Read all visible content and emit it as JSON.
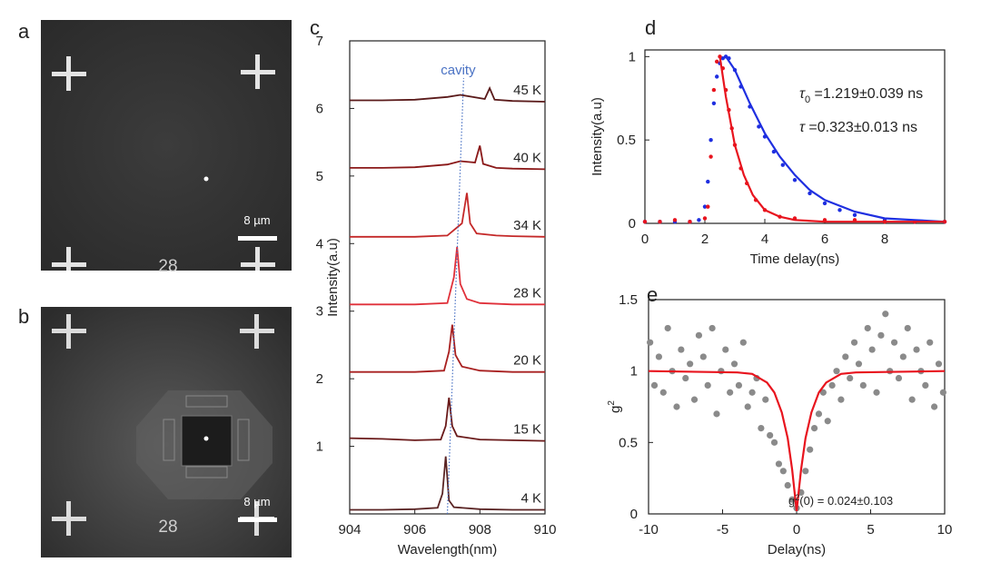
{
  "images": [
    {
      "panel_label": "a",
      "scale_bar": "8 µm",
      "marker_text": "28"
    },
    {
      "panel_label": "b",
      "scale_bar": "8 µm",
      "marker_text": "28"
    }
  ],
  "chart_data": [
    {
      "type": "line",
      "panel_label": "c",
      "xlabel": "Wavelength(nm)",
      "ylabel": "Intensity(a.u)",
      "xlim": [
        904,
        910
      ],
      "xticks": [
        904,
        906,
        908,
        910
      ],
      "ylim": [
        0,
        7
      ],
      "yticks": [
        1,
        2,
        3,
        4,
        5,
        6,
        7
      ],
      "annotation": {
        "text": "cavity",
        "color": "#4a72c4",
        "x": [
          907.0,
          907.5
        ],
        "y": [
          0,
          6.45
        ]
      },
      "series": [
        {
          "name": "4 K",
          "color": "#5a2424",
          "x": [
            904,
            905,
            906,
            906.7,
            906.85,
            906.95,
            907.05,
            907.2,
            908,
            909,
            910
          ],
          "values": [
            0.06,
            0.06,
            0.07,
            0.09,
            0.3,
            0.85,
            0.2,
            0.1,
            0.07,
            0.06,
            0.06
          ]
        },
        {
          "name": "15 K",
          "color": "#6a1a1a",
          "x": [
            904,
            905,
            906,
            906.8,
            906.95,
            907.05,
            907.15,
            907.3,
            908,
            909,
            910
          ],
          "values": [
            1.12,
            1.11,
            1.09,
            1.1,
            1.3,
            1.72,
            1.3,
            1.15,
            1.1,
            1.09,
            1.08
          ]
        },
        {
          "name": "20 K",
          "color": "#a82020",
          "x": [
            904,
            905,
            906,
            906.9,
            907.05,
            907.15,
            907.25,
            907.45,
            908,
            909,
            910
          ],
          "values": [
            2.1,
            2.1,
            2.1,
            2.12,
            2.4,
            2.8,
            2.35,
            2.18,
            2.12,
            2.1,
            2.1
          ]
        },
        {
          "name": "28 K",
          "color": "#e0303a",
          "x": [
            904,
            905,
            906,
            907,
            907.2,
            907.3,
            907.4,
            907.6,
            908,
            909,
            910
          ],
          "values": [
            3.1,
            3.1,
            3.1,
            3.12,
            3.5,
            3.95,
            3.4,
            3.18,
            3.12,
            3.1,
            3.1
          ]
        },
        {
          "name": "34 K",
          "color": "#c42828",
          "x": [
            904,
            905,
            906,
            907,
            907.45,
            907.6,
            907.7,
            907.9,
            908.5,
            909,
            910
          ],
          "values": [
            4.1,
            4.1,
            4.1,
            4.12,
            4.3,
            4.75,
            4.3,
            4.15,
            4.12,
            4.11,
            4.1
          ]
        },
        {
          "name": "40 K",
          "color": "#8a1818",
          "x": [
            904,
            905,
            906,
            907,
            907.4,
            907.85,
            908.0,
            908.1,
            908.5,
            909,
            910
          ],
          "values": [
            5.12,
            5.12,
            5.13,
            5.17,
            5.22,
            5.2,
            5.45,
            5.18,
            5.12,
            5.11,
            5.1
          ]
        },
        {
          "name": "45 K",
          "color": "#5a1a1a",
          "x": [
            904,
            905,
            906,
            907,
            907.4,
            908.15,
            908.3,
            908.45,
            909,
            910
          ],
          "values": [
            6.12,
            6.12,
            6.13,
            6.17,
            6.2,
            6.14,
            6.3,
            6.13,
            6.11,
            6.1
          ]
        }
      ]
    },
    {
      "type": "scatter",
      "panel_label": "d",
      "xlabel": "Time delay(ns)",
      "ylabel": "Intensity(a.u)",
      "xlim": [
        0,
        10
      ],
      "xticks": [
        0,
        2,
        4,
        6,
        8
      ],
      "ylim": [
        0,
        1.04
      ],
      "yticks": [
        0,
        0.5,
        1
      ],
      "annotations": [
        {
          "symbol": "τ",
          "sub": "0",
          "text": " =1.219±0.039 ns"
        },
        {
          "symbol": "τ",
          "sub": "",
          "text": " =0.323±0.013 ns"
        }
      ],
      "series": [
        {
          "color": "#1f2fe0",
          "style": "markers",
          "x": [
            0,
            0.5,
            1,
            1.5,
            1.8,
            2,
            2.1,
            2.2,
            2.3,
            2.4,
            2.5,
            2.6,
            2.7,
            2.8,
            3,
            3.2,
            3.5,
            3.8,
            4,
            4.3,
            4.6,
            5,
            5.5,
            6,
            6.5,
            7,
            8,
            9,
            10
          ],
          "values": [
            0.01,
            0.01,
            0.01,
            0.01,
            0.02,
            0.1,
            0.25,
            0.5,
            0.72,
            0.88,
            0.96,
            0.99,
            1.0,
            0.99,
            0.92,
            0.82,
            0.7,
            0.58,
            0.52,
            0.43,
            0.35,
            0.26,
            0.18,
            0.12,
            0.08,
            0.05,
            0.02,
            0.01,
            0.01
          ]
        },
        {
          "color": "#e8141e",
          "style": "markers",
          "x": [
            0,
            0.5,
            1,
            1.5,
            2,
            2.1,
            2.2,
            2.3,
            2.4,
            2.5,
            2.6,
            2.7,
            2.8,
            2.9,
            3,
            3.2,
            3.4,
            3.7,
            4,
            4.5,
            5,
            6,
            7,
            8,
            9,
            10
          ],
          "values": [
            0.01,
            0.01,
            0.02,
            0.01,
            0.03,
            0.1,
            0.4,
            0.8,
            0.97,
            1.0,
            0.93,
            0.8,
            0.68,
            0.57,
            0.47,
            0.33,
            0.24,
            0.14,
            0.08,
            0.04,
            0.03,
            0.02,
            0.02,
            0.01,
            0.01,
            0.01
          ]
        },
        {
          "color": "#1f2fe0",
          "style": "line",
          "x": [
            2.7,
            3,
            3.5,
            4,
            4.5,
            5,
            5.5,
            6,
            7,
            8,
            9,
            10
          ],
          "values": [
            1,
            0.92,
            0.72,
            0.54,
            0.4,
            0.29,
            0.2,
            0.14,
            0.07,
            0.03,
            0.02,
            0.01
          ]
        },
        {
          "color": "#e8141e",
          "style": "line",
          "x": [
            2.5,
            2.7,
            3,
            3.3,
            3.6,
            4,
            4.5,
            5,
            6,
            8,
            10
          ],
          "values": [
            1,
            0.76,
            0.47,
            0.29,
            0.17,
            0.08,
            0.04,
            0.02,
            0.01,
            0.01,
            0.01
          ]
        }
      ]
    },
    {
      "type": "scatter",
      "panel_label": "e",
      "xlabel": "Delay(ns)",
      "ylabel": "g",
      "ylabel_sup": "2",
      "xlim": [
        -10,
        10
      ],
      "xticks": [
        -10,
        -5,
        0,
        5,
        10
      ],
      "ylim": [
        0,
        1.5
      ],
      "yticks": [
        0,
        0.5,
        1,
        1.5
      ],
      "annotation": {
        "base": "g",
        "sup": "2",
        "text": "(0) = 0.024±0.103"
      },
      "series": [
        {
          "color": "#8a8a8a",
          "style": "markers",
          "x": [
            -9.9,
            -9.6,
            -9.3,
            -9,
            -8.7,
            -8.4,
            -8.1,
            -7.8,
            -7.5,
            -7.2,
            -6.9,
            -6.6,
            -6.3,
            -6,
            -5.7,
            -5.4,
            -5.1,
            -4.8,
            -4.5,
            -4.2,
            -3.9,
            -3.6,
            -3.3,
            -3,
            -2.7,
            -2.4,
            -2.1,
            -1.8,
            -1.5,
            -1.2,
            -0.9,
            -0.6,
            -0.3,
            0,
            0.3,
            0.6,
            0.9,
            1.2,
            1.5,
            1.8,
            2.1,
            2.4,
            2.7,
            3,
            3.3,
            3.6,
            3.9,
            4.2,
            4.5,
            4.8,
            5.1,
            5.4,
            5.7,
            6,
            6.3,
            6.6,
            6.9,
            7.2,
            7.5,
            7.8,
            8.1,
            8.4,
            8.7,
            9,
            9.3,
            9.6,
            9.9
          ],
          "values": [
            1.2,
            0.9,
            1.1,
            0.85,
            1.3,
            1.0,
            0.75,
            1.15,
            0.95,
            1.05,
            0.8,
            1.25,
            1.1,
            0.9,
            1.3,
            0.7,
            1.0,
            1.15,
            0.85,
            1.05,
            0.9,
            1.2,
            0.75,
            0.85,
            0.95,
            0.6,
            0.8,
            0.55,
            0.5,
            0.35,
            0.3,
            0.2,
            0.1,
            0.04,
            0.15,
            0.3,
            0.45,
            0.6,
            0.7,
            0.85,
            0.65,
            0.9,
            1.0,
            0.8,
            1.1,
            0.95,
            1.2,
            1.05,
            0.9,
            1.3,
            1.15,
            0.85,
            1.25,
            1.4,
            1.0,
            1.2,
            0.95,
            1.1,
            1.3,
            0.8,
            1.15,
            1.0,
            0.9,
            1.2,
            0.75,
            1.05,
            0.85
          ]
        },
        {
          "color": "#e8141e",
          "style": "line",
          "x": [
            -10,
            -4,
            -3,
            -2,
            -1.5,
            -1,
            -0.6,
            -0.3,
            0,
            0.3,
            0.6,
            1,
            1.5,
            2,
            3,
            4,
            10
          ],
          "values": [
            1,
            0.99,
            0.98,
            0.92,
            0.85,
            0.71,
            0.53,
            0.31,
            0.02,
            0.31,
            0.53,
            0.71,
            0.85,
            0.92,
            0.98,
            0.99,
            1
          ]
        }
      ]
    }
  ]
}
